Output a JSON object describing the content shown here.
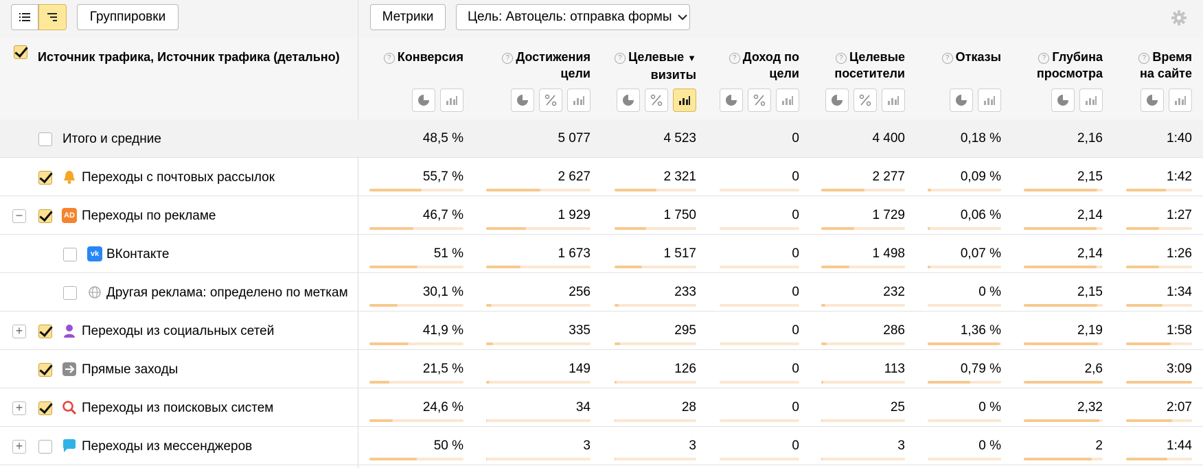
{
  "toolbar": {
    "groupings_label": "Группировки",
    "metrics_label": "Метрики",
    "goal_label": "Цель: Автоцель: отправка формы",
    "settings_icon": "gear-icon"
  },
  "header": {
    "dimension_title": "Источник трафика, Источник трафика (детально)",
    "columns": [
      {
        "line1": "Конверсия",
        "line2": ""
      },
      {
        "line1": "Достижения",
        "line2": "цели"
      },
      {
        "line1": "Целевые",
        "line2": "визиты",
        "sort": "▼"
      },
      {
        "line1": "Доход по",
        "line2": "цели"
      },
      {
        "line1": "Целевые",
        "line2": "посетители"
      },
      {
        "line1": "Отказы",
        "line2": ""
      },
      {
        "line1": "Глубина",
        "line2": "просмотра"
      },
      {
        "line1": "Время",
        "line2": "на сайте"
      }
    ]
  },
  "rows": [
    {
      "label": "Итого и средние",
      "values": [
        "48,5 %",
        "5 077",
        "4 523",
        "0",
        "4 400",
        "0,18 %",
        "2,16",
        "1:40"
      ]
    },
    {
      "label": "Переходы с почтовых рассылок",
      "icon": "bell-icon",
      "values": [
        "55,7 %",
        "2 627",
        "2 321",
        "0",
        "2 277",
        "0,09 %",
        "2,15",
        "1:42"
      ],
      "bars": [
        0.557,
        0.517,
        0.513,
        0,
        0.517,
        0.05,
        0.93,
        0.6
      ]
    },
    {
      "label": "Переходы по рекламе",
      "icon": "ad-icon",
      "icon_text": "AD",
      "values": [
        "46,7 %",
        "1 929",
        "1 750",
        "0",
        "1 729",
        "0,06 %",
        "2,14",
        "1:27"
      ],
      "bars": [
        0.467,
        0.38,
        0.387,
        0,
        0.393,
        0.03,
        0.92,
        0.5
      ]
    },
    {
      "label": "ВКонтакте",
      "icon": "vk-icon",
      "values": [
        "51 %",
        "1 673",
        "1 517",
        "0",
        "1 498",
        "0,07 %",
        "2,14",
        "1:26"
      ],
      "bars": [
        0.51,
        0.33,
        0.335,
        0,
        0.34,
        0.04,
        0.92,
        0.5
      ]
    },
    {
      "label": "Другая реклама: определено по меткам",
      "icon": "globe-icon",
      "values": [
        "30,1 %",
        "256",
        "233",
        "0",
        "232",
        "0 %",
        "2,15",
        "1:34"
      ],
      "bars": [
        0.301,
        0.05,
        0.05,
        0,
        0.05,
        0,
        0.93,
        0.55
      ]
    },
    {
      "label": "Переходы из социальных сетей",
      "icon": "person-icon",
      "values": [
        "41,9 %",
        "335",
        "295",
        "0",
        "286",
        "1,36 %",
        "2,19",
        "1:58"
      ],
      "bars": [
        0.419,
        0.066,
        0.065,
        0,
        0.065,
        0.98,
        0.94,
        0.68
      ]
    },
    {
      "label": "Прямые заходы",
      "icon": "arrow-icon",
      "values": [
        "21,5 %",
        "149",
        "126",
        "0",
        "113",
        "0,79 %",
        "2,6",
        "3:09"
      ],
      "bars": [
        0.215,
        0.03,
        0.028,
        0,
        0.026,
        0.58,
        1.0,
        1.0
      ]
    },
    {
      "label": "Переходы из поисковых систем",
      "icon": "search-icon",
      "values": [
        "24,6 %",
        "34",
        "28",
        "0",
        "25",
        "0 %",
        "2,32",
        "2:07"
      ],
      "bars": [
        0.246,
        0.007,
        0.006,
        0,
        0.006,
        0,
        0.96,
        0.7
      ]
    },
    {
      "label": "Переходы из мессенджеров",
      "icon": "chat-icon",
      "values": [
        "50 %",
        "3",
        "3",
        "0",
        "3",
        "0 %",
        "2",
        "1:44"
      ],
      "bars": [
        0.5,
        0.001,
        0.001,
        0,
        0.001,
        0,
        0.86,
        0.62
      ]
    }
  ]
}
